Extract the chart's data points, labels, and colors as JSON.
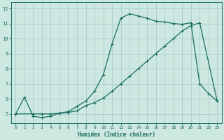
{
  "xlabel": "Humidex (Indice chaleur)",
  "bg_color": "#cce8e0",
  "grid_color": "#aacccc",
  "line_color": "#1a6e60",
  "xlim": [
    -0.5,
    23.5
  ],
  "ylim": [
    4.4,
    12.4
  ],
  "xticks": [
    0,
    1,
    2,
    3,
    4,
    5,
    6,
    7,
    8,
    9,
    10,
    11,
    12,
    13,
    14,
    15,
    16,
    17,
    18,
    19,
    20,
    21,
    22,
    23
  ],
  "yticks": [
    5,
    6,
    7,
    8,
    9,
    10,
    11,
    12
  ],
  "line1_x": [
    0,
    1,
    2,
    3,
    4,
    5,
    6,
    7,
    8,
    9,
    10,
    11,
    12,
    13,
    14,
    15,
    16,
    17,
    18,
    19,
    20,
    21,
    22,
    23
  ],
  "line1_y": [
    5.0,
    6.1,
    4.85,
    4.75,
    4.85,
    5.05,
    5.15,
    5.5,
    5.85,
    6.5,
    7.6,
    9.65,
    11.35,
    11.65,
    11.5,
    11.35,
    11.15,
    11.1,
    11.0,
    10.95,
    11.05,
    7.0,
    6.35,
    5.85
  ],
  "line2_x": [
    0,
    2,
    3,
    4,
    5,
    6,
    7,
    8,
    9,
    10,
    11,
    12,
    13,
    14,
    15,
    16,
    17,
    18,
    19,
    20,
    21,
    23
  ],
  "line2_y": [
    5.0,
    5.0,
    5.0,
    5.0,
    5.05,
    5.1,
    5.2,
    5.55,
    5.75,
    6.05,
    6.5,
    7.0,
    7.5,
    8.0,
    8.5,
    9.0,
    9.5,
    10.0,
    10.5,
    10.85,
    11.05,
    5.85
  ]
}
